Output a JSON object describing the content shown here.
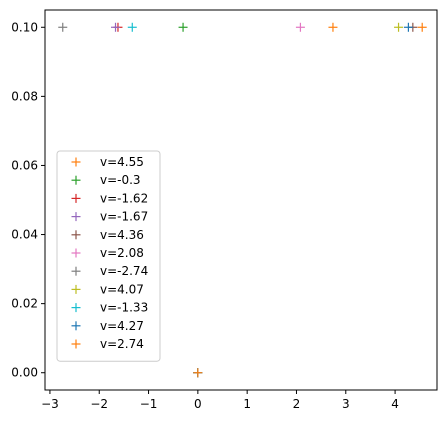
{
  "chart_data": {
    "type": "scatter",
    "title": "",
    "xlabel": "",
    "ylabel": "",
    "xlim": [
      -3.1,
      4.85
    ],
    "ylim": [
      -0.005,
      0.105
    ],
    "x_ticks": [
      -3,
      -2,
      -1,
      0,
      1,
      2,
      3,
      4
    ],
    "x_tick_labels": [
      "−3",
      "−2",
      "−1",
      "0",
      "1",
      "2",
      "3",
      "4"
    ],
    "y_ticks": [
      0.0,
      0.02,
      0.04,
      0.06,
      0.08,
      0.1
    ],
    "y_tick_labels": [
      "0.00",
      "0.02",
      "0.04",
      "0.06",
      "0.08",
      "0.10"
    ],
    "grid": false,
    "legend_position": "lower-left",
    "marker": "+",
    "series": [
      {
        "name": "v=4.55",
        "color": "#ff7f0e",
        "x": [
          4.55,
          0
        ],
        "y": [
          0.1,
          0
        ]
      },
      {
        "name": "v=-0.3",
        "color": "#2ca02c",
        "x": [
          -0.3,
          0
        ],
        "y": [
          0.1,
          0
        ]
      },
      {
        "name": "v=-1.62",
        "color": "#d62728",
        "x": [
          -1.62,
          0
        ],
        "y": [
          0.1,
          0
        ]
      },
      {
        "name": "v=-1.67",
        "color": "#9467bd",
        "x": [
          -1.67,
          0
        ],
        "y": [
          0.1,
          0
        ]
      },
      {
        "name": "v=4.36",
        "color": "#8c564b",
        "x": [
          4.36,
          0
        ],
        "y": [
          0.1,
          0
        ]
      },
      {
        "name": "v=2.08",
        "color": "#e377c2",
        "x": [
          2.08,
          0
        ],
        "y": [
          0.1,
          0
        ]
      },
      {
        "name": "v=-2.74",
        "color": "#7f7f7f",
        "x": [
          -2.74,
          0
        ],
        "y": [
          0.1,
          0
        ]
      },
      {
        "name": "v=4.07",
        "color": "#bcbd22",
        "x": [
          4.07,
          0
        ],
        "y": [
          0.1,
          0
        ]
      },
      {
        "name": "v=-1.33",
        "color": "#17becf",
        "x": [
          -1.33,
          0
        ],
        "y": [
          0.1,
          0
        ]
      },
      {
        "name": "v=4.27",
        "color": "#1f77b4",
        "x": [
          4.27,
          0
        ],
        "y": [
          0.1,
          0
        ]
      },
      {
        "name": "v=2.74",
        "color": "#ff7f0e",
        "x": [
          2.74,
          0
        ],
        "y": [
          0.1,
          0
        ]
      }
    ]
  }
}
